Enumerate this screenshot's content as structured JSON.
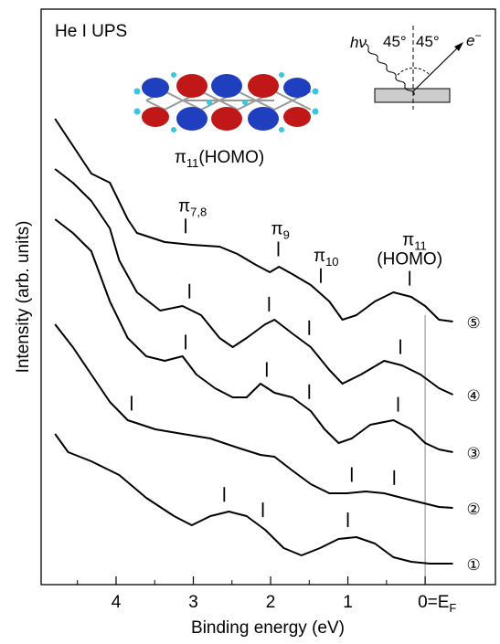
{
  "chart_data": {
    "type": "line",
    "title": "He I UPS",
    "xlabel": "Binding energy (eV)",
    "ylabel": "Intensity (arb. units)",
    "xlim": [
      4.97,
      -0.91
    ],
    "ylim": [
      0,
      630
    ],
    "xticks": [
      4,
      3,
      2,
      1,
      {
        "value": 0,
        "label": "0=E",
        "label_sub": "F"
      }
    ],
    "xticks_minor": [
      4.5,
      3.5,
      2.5,
      1.5,
      0.5
    ],
    "reference_x": 0,
    "color": "#000000",
    "series": [
      {
        "name": "①",
        "x": [
          4.79,
          4.62,
          4.32,
          3.96,
          3.61,
          3.25,
          3.02,
          2.78,
          2.54,
          2.31,
          2.07,
          1.83,
          1.6,
          1.36,
          1.12,
          0.89,
          0.65,
          0.41,
          0.18,
          -0.06,
          -0.36
        ],
        "values": [
          165,
          145,
          135,
          120,
          95,
          75,
          65,
          75,
          80,
          75,
          60,
          40,
          32,
          40,
          50,
          52,
          45,
          30,
          25,
          23,
          23
        ],
        "peaks": [
          2.6,
          2.1,
          1.0
        ]
      },
      {
        "name": "②",
        "x": [
          4.79,
          4.56,
          4.32,
          4.08,
          3.85,
          3.49,
          3.14,
          2.78,
          2.43,
          2.13,
          1.95,
          1.72,
          1.48,
          1.24,
          1.01,
          0.77,
          0.53,
          0.3,
          0.06,
          -0.18,
          -0.36
        ],
        "values": [
          285,
          260,
          230,
          200,
          180,
          170,
          165,
          160,
          150,
          142,
          140,
          125,
          110,
          100,
          100,
          102,
          100,
          95,
          90,
          85,
          84
        ],
        "peaks": [
          3.8,
          0.95,
          0.4
        ]
      },
      {
        "name": "③",
        "x": [
          4.79,
          4.56,
          4.32,
          4.08,
          3.85,
          3.61,
          3.37,
          3.14,
          2.96,
          2.72,
          2.49,
          2.31,
          2.13,
          1.95,
          1.72,
          1.48,
          1.3,
          1.12,
          0.95,
          0.71,
          0.41,
          0.18,
          0,
          -0.18,
          -0.36
        ],
        "values": [
          400,
          385,
          365,
          310,
          270,
          250,
          245,
          250,
          230,
          215,
          205,
          205,
          220,
          210,
          205,
          190,
          170,
          155,
          160,
          175,
          180,
          170,
          155,
          148,
          145
        ],
        "peaks": [
          3.1,
          2.05,
          1.5,
          0.35
        ]
      },
      {
        "name": "④",
        "x": [
          4.79,
          4.56,
          4.32,
          4.08,
          3.96,
          3.73,
          3.43,
          3.14,
          2.9,
          2.66,
          2.49,
          2.31,
          2.07,
          1.95,
          1.72,
          1.48,
          1.24,
          1.07,
          0.83,
          0.53,
          0.3,
          0.06,
          -0.18,
          -0.36
        ],
        "values": [
          455,
          440,
          420,
          390,
          355,
          320,
          300,
          305,
          295,
          270,
          260,
          270,
          285,
          290,
          275,
          260,
          235,
          220,
          230,
          245,
          240,
          230,
          215,
          208
        ],
        "peaks": [
          3.05,
          2.02,
          1.5,
          0.32
        ]
      },
      {
        "name": "⑤",
        "x": [
          4.79,
          4.32,
          4.08,
          3.85,
          3.73,
          3.37,
          3.02,
          2.66,
          2.43,
          2.19,
          2.01,
          1.89,
          1.72,
          1.48,
          1.24,
          1.07,
          0.89,
          0.65,
          0.41,
          0.18,
          0,
          -0.18,
          -0.36
        ],
        "values": [
          510,
          450,
          440,
          400,
          385,
          375,
          372,
          370,
          362,
          350,
          342,
          348,
          340,
          328,
          310,
          290,
          295,
          310,
          320,
          315,
          305,
          290,
          288
        ],
        "peaks": [
          3.1,
          1.9,
          1.35,
          0.2
        ]
      }
    ],
    "peak_labels": [
      {
        "text": "π",
        "sub": "7,8"
      },
      {
        "text": "π",
        "sub": "9"
      },
      {
        "text": "π",
        "sub": "10"
      },
      {
        "text": "π",
        "sub": "11",
        "line2": "(HOMO)"
      }
    ],
    "inset_molecule": {
      "text": "π",
      "sub": "11",
      "suffix": "(HOMO)"
    },
    "inset_geometry": {
      "photon": "hν",
      "angle_in": "45°",
      "angle_out": "45°",
      "electron": "e",
      "electron_sup": "−"
    }
  }
}
